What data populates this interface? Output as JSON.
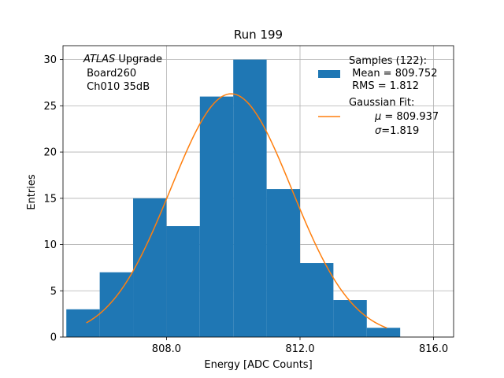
{
  "chart_data": {
    "type": "bar",
    "title": "Run 199",
    "xlabel": "Energy [ADC Counts]",
    "ylabel": "Entries",
    "xlim": [
      804.9,
      816.6
    ],
    "ylim": [
      0,
      31.5
    ],
    "grid": true,
    "xticks": [
      808.0,
      812.0,
      816.0
    ],
    "xtick_labels": [
      "808.0",
      "812.0",
      "816.0"
    ],
    "yticks": [
      0,
      5,
      10,
      15,
      20,
      25,
      30
    ],
    "ytick_labels": [
      "0",
      "5",
      "10",
      "15",
      "20",
      "25",
      "30"
    ],
    "histogram": {
      "bin_edges": [
        805.0,
        806.0,
        807.0,
        808.0,
        809.0,
        810.0,
        811.0,
        812.0,
        813.0,
        814.0,
        815.0
      ],
      "counts": [
        3,
        7,
        15,
        12,
        26,
        30,
        16,
        8,
        4,
        1
      ],
      "color": "#1f77b4"
    },
    "fit": {
      "type": "gaussian",
      "mu": 809.937,
      "sigma": 1.819,
      "amplitude": 26.3,
      "x_range": [
        805.6,
        814.6
      ],
      "color": "#ff7f0e"
    },
    "annotation": {
      "line1_italic": "ATLAS",
      "line1_rest": " Upgrade",
      "line2": " Board260",
      "line3": " Ch010 35dB"
    },
    "legend": {
      "placement": "top-right",
      "samples_title": "Samples (122):",
      "samples_mean": " Mean = 809.752",
      "samples_rms": " RMS = 1.812",
      "fit_title": "Gaussian Fit:",
      "fit_mu_symbol": "μ",
      "fit_mu_value": " = 809.937",
      "fit_sigma_symbol": "σ",
      "fit_sigma_value": "=1.819"
    }
  }
}
